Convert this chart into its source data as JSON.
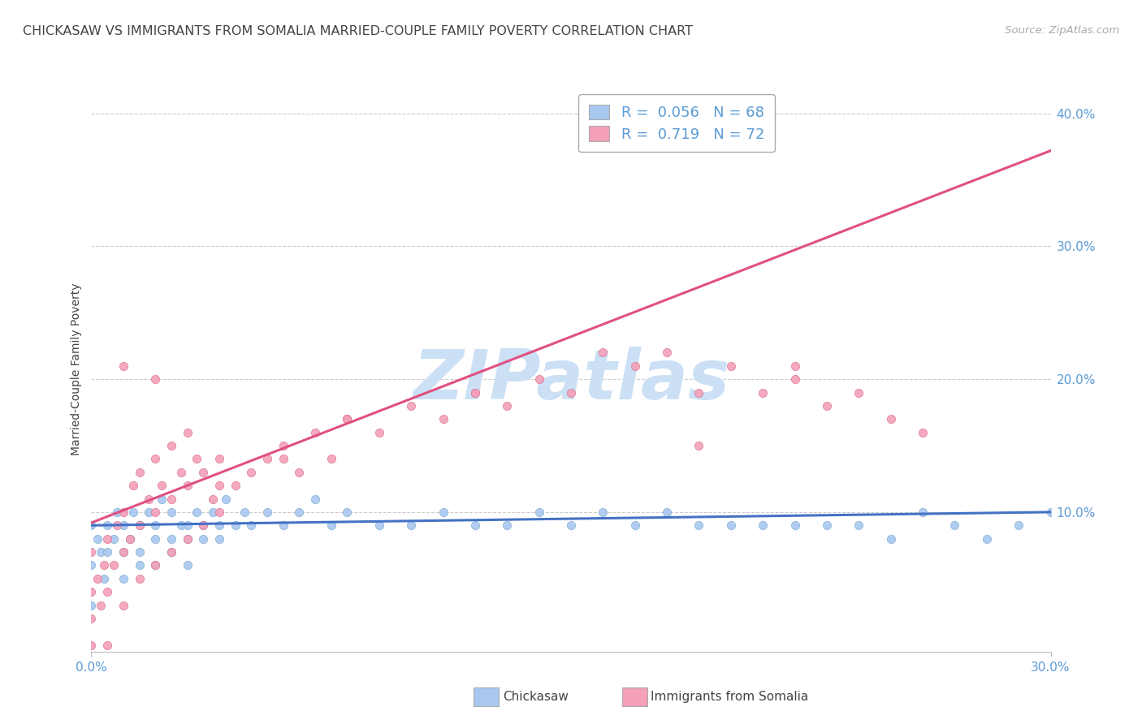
{
  "title": "CHICKASAW VS IMMIGRANTS FROM SOMALIA MARRIED-COUPLE FAMILY POVERTY CORRELATION CHART",
  "source": "Source: ZipAtlas.com",
  "xlim": [
    0.0,
    0.3
  ],
  "ylim": [
    -0.005,
    0.42
  ],
  "ytick_positions": [
    0.1,
    0.2,
    0.3,
    0.4
  ],
  "xtick_positions": [
    0.0,
    0.3
  ],
  "legend_entries": [
    {
      "label": "Chickasaw",
      "R": "0.056",
      "N": "68",
      "color": "#a8c8f0",
      "edge_color": "#7aaad0"
    },
    {
      "label": "Immigrants from Somalia",
      "R": "0.719",
      "N": "72",
      "color": "#f4a0b8",
      "edge_color": "#d87090"
    }
  ],
  "chickasaw_x": [
    0.0,
    0.0,
    0.0,
    0.002,
    0.003,
    0.004,
    0.005,
    0.005,
    0.007,
    0.008,
    0.01,
    0.01,
    0.01,
    0.012,
    0.013,
    0.015,
    0.015,
    0.015,
    0.018,
    0.02,
    0.02,
    0.02,
    0.022,
    0.025,
    0.025,
    0.025,
    0.028,
    0.03,
    0.03,
    0.03,
    0.033,
    0.035,
    0.035,
    0.038,
    0.04,
    0.04,
    0.042,
    0.045,
    0.048,
    0.05,
    0.055,
    0.06,
    0.065,
    0.07,
    0.075,
    0.08,
    0.09,
    0.1,
    0.11,
    0.12,
    0.13,
    0.14,
    0.15,
    0.17,
    0.19,
    0.21,
    0.22,
    0.24,
    0.26,
    0.28,
    0.16,
    0.18,
    0.2,
    0.23,
    0.25,
    0.27,
    0.29,
    0.3
  ],
  "chickasaw_y": [
    0.09,
    0.06,
    0.03,
    0.08,
    0.07,
    0.05,
    0.09,
    0.07,
    0.08,
    0.1,
    0.09,
    0.07,
    0.05,
    0.08,
    0.1,
    0.09,
    0.07,
    0.06,
    0.1,
    0.09,
    0.08,
    0.06,
    0.11,
    0.1,
    0.08,
    0.07,
    0.09,
    0.09,
    0.08,
    0.06,
    0.1,
    0.09,
    0.08,
    0.1,
    0.09,
    0.08,
    0.11,
    0.09,
    0.1,
    0.09,
    0.1,
    0.09,
    0.1,
    0.11,
    0.09,
    0.1,
    0.09,
    0.09,
    0.1,
    0.09,
    0.09,
    0.1,
    0.09,
    0.09,
    0.09,
    0.09,
    0.09,
    0.09,
    0.1,
    0.08,
    0.1,
    0.1,
    0.09,
    0.09,
    0.08,
    0.09,
    0.09,
    0.1
  ],
  "somalia_x": [
    0.0,
    0.0,
    0.0,
    0.0,
    0.002,
    0.003,
    0.004,
    0.005,
    0.005,
    0.005,
    0.007,
    0.008,
    0.01,
    0.01,
    0.01,
    0.012,
    0.013,
    0.015,
    0.015,
    0.015,
    0.018,
    0.02,
    0.02,
    0.02,
    0.022,
    0.025,
    0.025,
    0.025,
    0.028,
    0.03,
    0.03,
    0.03,
    0.033,
    0.035,
    0.035,
    0.038,
    0.04,
    0.04,
    0.045,
    0.05,
    0.055,
    0.06,
    0.065,
    0.07,
    0.075,
    0.08,
    0.09,
    0.1,
    0.11,
    0.12,
    0.13,
    0.14,
    0.15,
    0.16,
    0.17,
    0.18,
    0.19,
    0.2,
    0.21,
    0.22,
    0.23,
    0.24,
    0.25,
    0.26,
    0.22,
    0.19,
    0.12,
    0.08,
    0.06,
    0.04,
    0.02,
    0.01
  ],
  "somalia_y": [
    0.0,
    0.02,
    0.04,
    0.07,
    0.05,
    0.03,
    0.06,
    0.0,
    0.04,
    0.08,
    0.06,
    0.09,
    0.03,
    0.07,
    0.1,
    0.08,
    0.12,
    0.05,
    0.09,
    0.13,
    0.11,
    0.06,
    0.1,
    0.14,
    0.12,
    0.07,
    0.11,
    0.15,
    0.13,
    0.08,
    0.12,
    0.16,
    0.14,
    0.09,
    0.13,
    0.11,
    0.1,
    0.14,
    0.12,
    0.13,
    0.14,
    0.15,
    0.13,
    0.16,
    0.14,
    0.17,
    0.16,
    0.18,
    0.17,
    0.19,
    0.18,
    0.2,
    0.19,
    0.22,
    0.21,
    0.22,
    0.19,
    0.21,
    0.19,
    0.21,
    0.18,
    0.19,
    0.17,
    0.16,
    0.2,
    0.15,
    0.19,
    0.17,
    0.14,
    0.12,
    0.2,
    0.21
  ],
  "chickasaw_line": {
    "color": "#4472c4",
    "x0": 0.0,
    "x1": 0.3,
    "y0": 0.09,
    "y1": 0.1
  },
  "somalia_line": {
    "color": "#e05080",
    "x0": 0.0,
    "x1": 0.3,
    "y0": 0.092,
    "y1": 0.372
  },
  "watermark": "ZIPatlas",
  "watermark_color": "#cce0f5",
  "background_color": "#ffffff",
  "grid_color": "#cccccc",
  "title_color": "#444444",
  "title_fontsize": 11.5,
  "source_color": "#aaaaaa",
  "source_fontsize": 9.5,
  "tick_label_color": "#5b9bd5",
  "tick_label_fontsize": 11,
  "ylabel": "Married-Couple Family Poverty",
  "ylabel_color": "#444444",
  "ylabel_fontsize": 10
}
